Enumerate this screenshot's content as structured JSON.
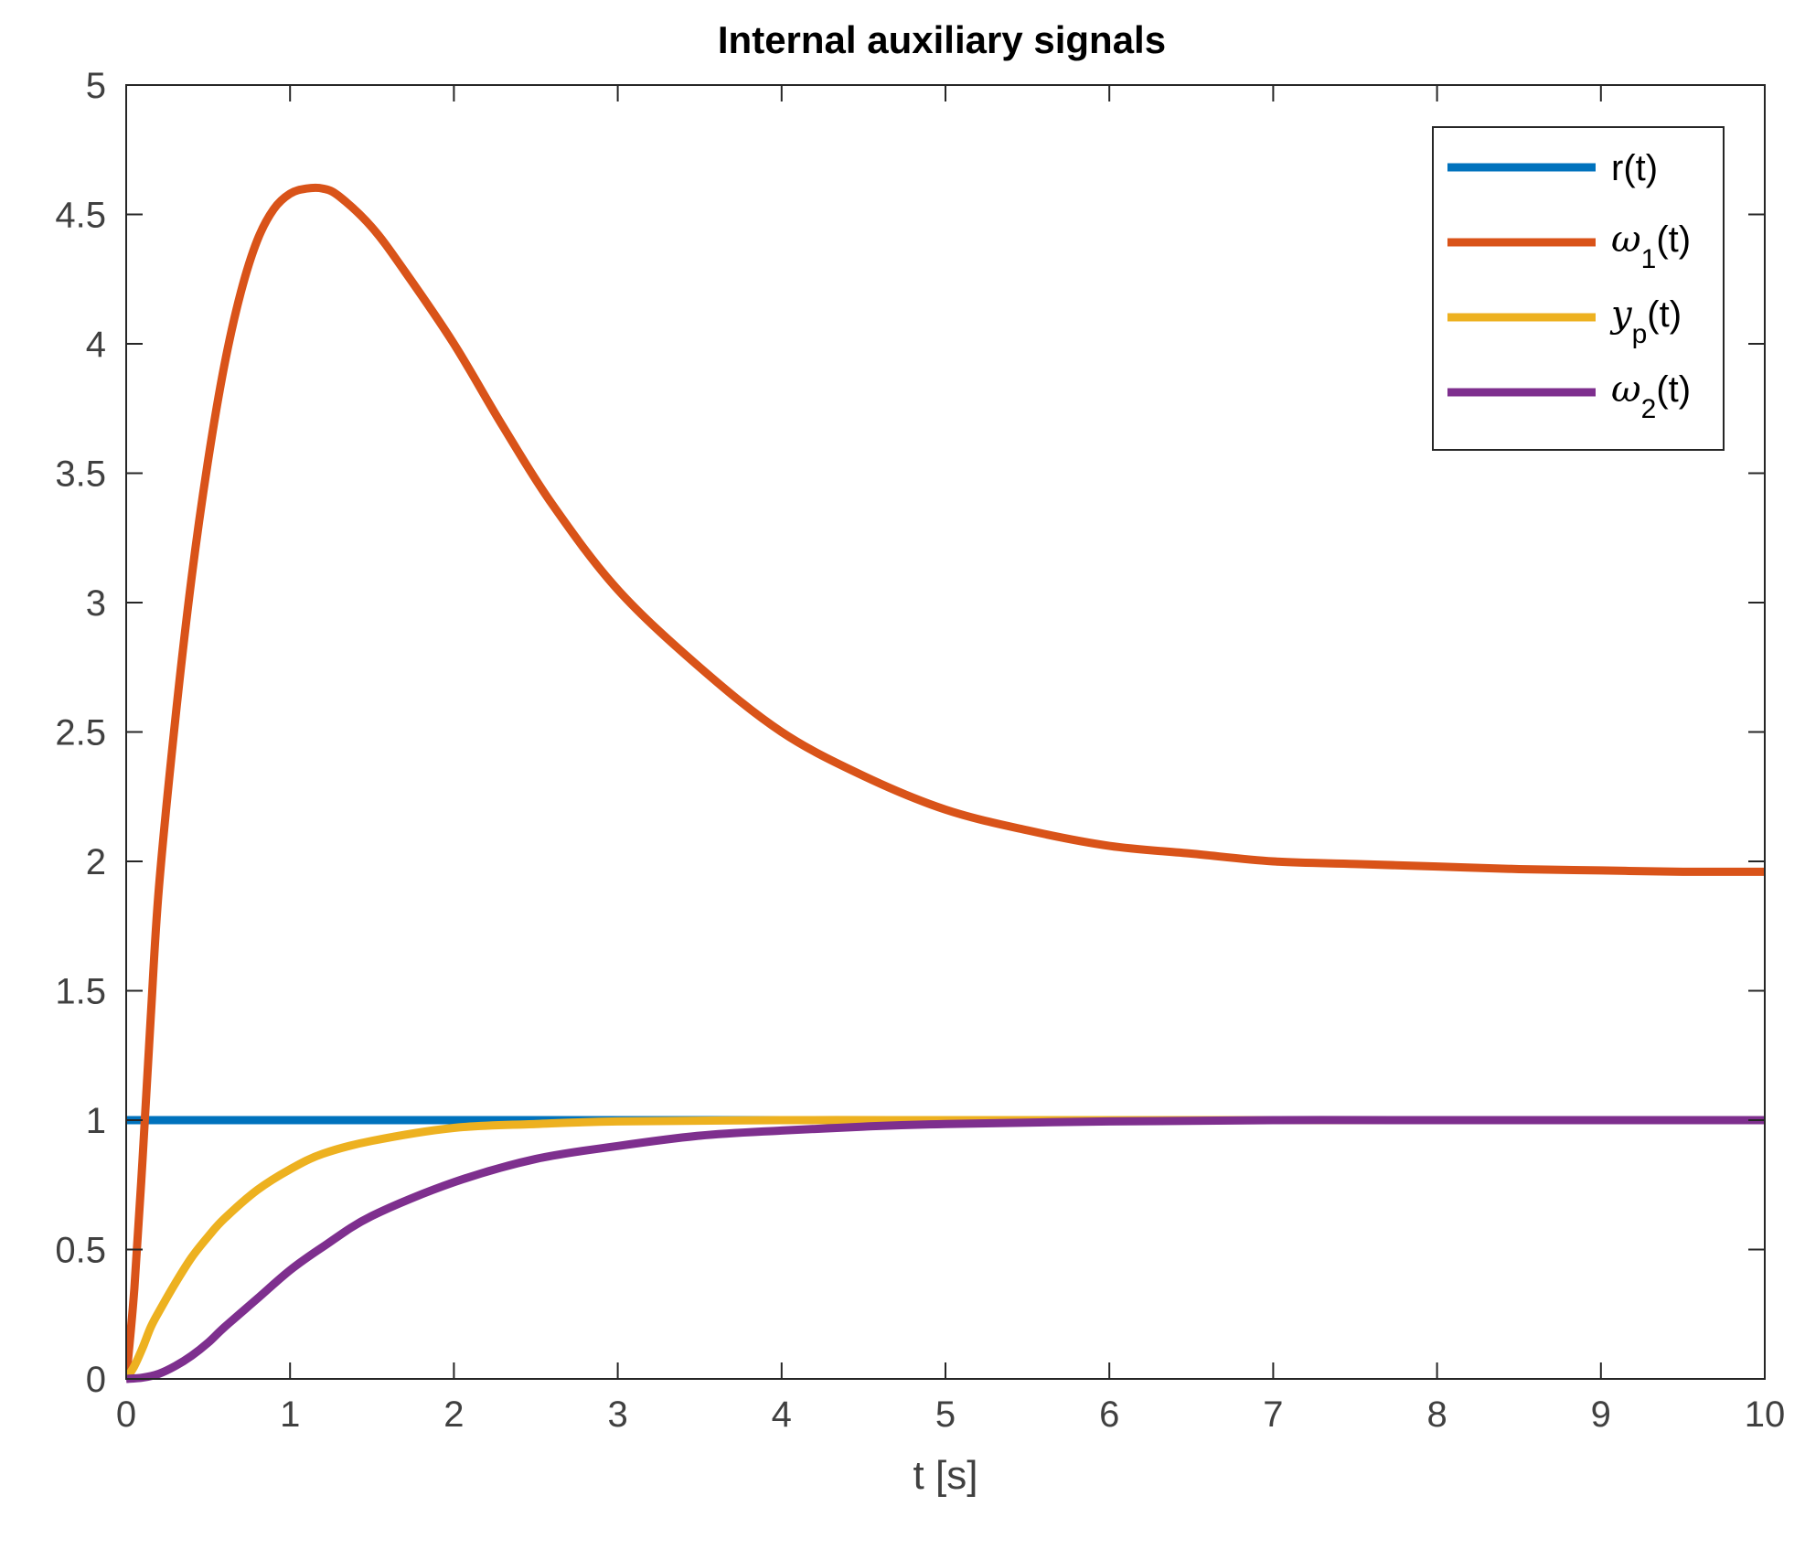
{
  "chart_data": {
    "type": "line",
    "title": "Internal auxiliary signals",
    "xlabel": "t [s]",
    "ylabel": "",
    "xlim": [
      0,
      10
    ],
    "ylim": [
      0,
      5
    ],
    "xticks": [
      "0",
      "1",
      "2",
      "3",
      "4",
      "5",
      "6",
      "7",
      "8",
      "9",
      "10"
    ],
    "yticks": [
      "0",
      "0.5",
      "1",
      "1.5",
      "2",
      "2.5",
      "3",
      "3.5",
      "4",
      "4.5",
      "5"
    ],
    "grid": false,
    "legend_position": "top-right",
    "legend": [
      {
        "key": "r",
        "text": "r(t)",
        "color": "#0072BD"
      },
      {
        "key": "w1",
        "sym": "ω",
        "sub": "1",
        "suffix": "(t)",
        "color": "#D95319"
      },
      {
        "key": "yp",
        "sym": "y",
        "sub": "p",
        "suffix": "(t)",
        "color": "#EDB120"
      },
      {
        "key": "w2",
        "sym": "ω",
        "sub": "2",
        "suffix": "(t)",
        "color": "#7E2F8E"
      }
    ],
    "series": [
      {
        "key": "r",
        "color": "#0072BD",
        "x": [
          0,
          10
        ],
        "y": [
          1,
          1
        ]
      },
      {
        "key": "w1",
        "color": "#D95319",
        "x": [
          0,
          0.05,
          0.1,
          0.15,
          0.2,
          0.3,
          0.4,
          0.5,
          0.6,
          0.7,
          0.8,
          0.9,
          1.0,
          1.1,
          1.2,
          1.3,
          1.5,
          1.7,
          2.0,
          2.3,
          2.6,
          3.0,
          3.5,
          4.0,
          4.5,
          5.0,
          5.5,
          6.0,
          6.5,
          7.0,
          7.5,
          8.0,
          8.5,
          9.0,
          9.5,
          10.0
        ],
        "y": [
          0,
          0.35,
          0.85,
          1.4,
          1.9,
          2.55,
          3.1,
          3.55,
          3.92,
          4.2,
          4.4,
          4.52,
          4.58,
          4.6,
          4.6,
          4.57,
          4.45,
          4.28,
          4.0,
          3.68,
          3.38,
          3.05,
          2.75,
          2.5,
          2.33,
          2.2,
          2.12,
          2.06,
          2.03,
          2.0,
          1.99,
          1.98,
          1.97,
          1.965,
          1.96,
          1.96
        ]
      },
      {
        "key": "yp",
        "color": "#EDB120",
        "x": [
          0,
          0.05,
          0.1,
          0.15,
          0.2,
          0.3,
          0.4,
          0.5,
          0.6,
          0.8,
          1.0,
          1.2,
          1.5,
          2.0,
          2.5,
          3.0,
          4.0,
          5.0,
          6.0,
          8.0,
          10.0
        ],
        "y": [
          0,
          0.05,
          0.12,
          0.2,
          0.26,
          0.37,
          0.47,
          0.55,
          0.62,
          0.73,
          0.81,
          0.87,
          0.92,
          0.97,
          0.985,
          0.995,
          1.0,
          1.0,
          1.0,
          1.0,
          1.0
        ]
      },
      {
        "key": "w2",
        "color": "#7E2F8E",
        "x": [
          0,
          0.1,
          0.2,
          0.3,
          0.4,
          0.5,
          0.6,
          0.8,
          1.0,
          1.2,
          1.5,
          2.0,
          2.5,
          3.0,
          3.5,
          4.0,
          4.5,
          5.0,
          6.0,
          7.0,
          8.0,
          10.0
        ],
        "y": [
          0,
          0.005,
          0.02,
          0.05,
          0.09,
          0.14,
          0.2,
          0.31,
          0.42,
          0.51,
          0.63,
          0.76,
          0.85,
          0.9,
          0.94,
          0.96,
          0.975,
          0.985,
          0.995,
          1.0,
          1.0,
          1.0
        ]
      }
    ]
  }
}
